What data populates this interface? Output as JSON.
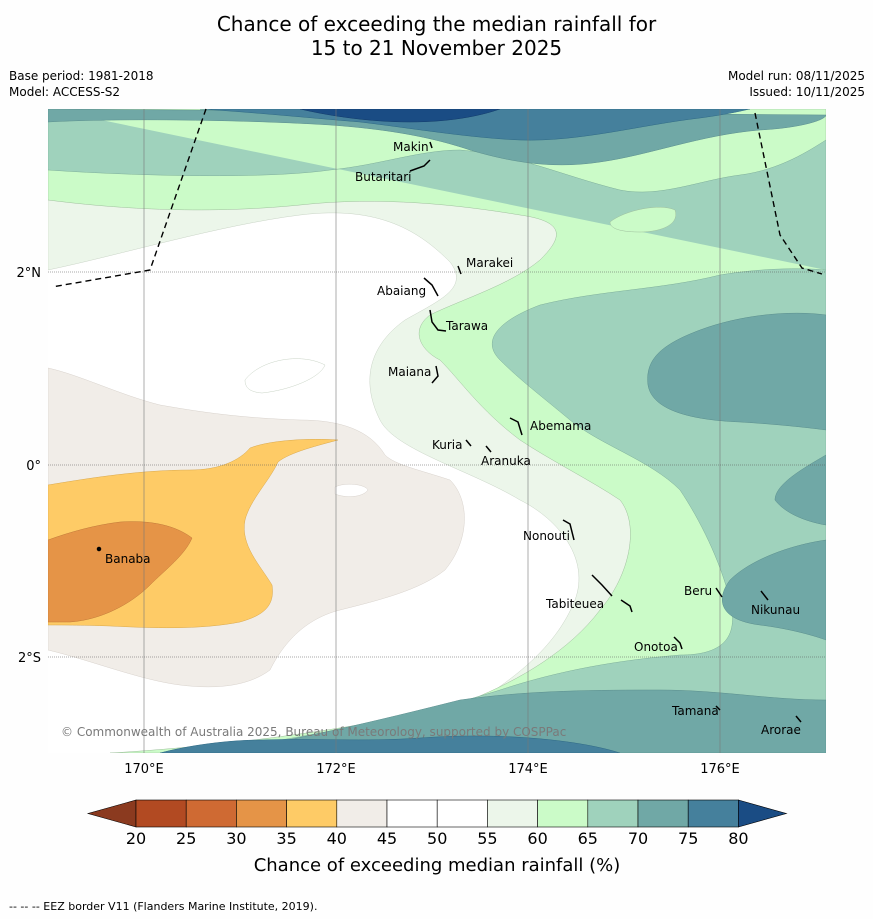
{
  "title": {
    "line1": "Chance of exceeding the median rainfall for",
    "line2": "15 to 21 November 2025"
  },
  "meta": {
    "base_period": "Base period: 1981-2018",
    "model": "Model: ACCESS-S2",
    "model_run": "Model run: 08/11/2025",
    "issued": "Issued: 10/11/2025"
  },
  "axes": {
    "lon_ticks": [
      "170°E",
      "172°E",
      "174°E",
      "176°E"
    ],
    "lat_ticks": [
      "2°N",
      "0°",
      "2°S"
    ]
  },
  "places": [
    "Makin",
    "Butaritari",
    "Marakei",
    "Abaiang",
    "Tarawa",
    "Maiana",
    "Abemama",
    "Kuria",
    "Aranuka",
    "Nonouti",
    "Banaba",
    "Beru",
    "Nikunau",
    "Tabiteuea",
    "Onotoa",
    "Tamana",
    "Arorae"
  ],
  "copyright": "© Commonwealth of Australia 2025, Bureau of Meteorology, supported by COSPPac",
  "colorbar": {
    "ticks": [
      "20",
      "25",
      "30",
      "35",
      "40",
      "45",
      "50",
      "55",
      "60",
      "65",
      "70",
      "75",
      "80"
    ],
    "label": "Chance of exceeding median rainfall (%)",
    "colors": [
      "#8b3a1f",
      "#b24a22",
      "#cf6a33",
      "#e59447",
      "#fecb66",
      "#f1ede8",
      "#ffffff",
      "#ffffff",
      "#ecf6ea",
      "#cbfbc8",
      "#9fd2bc",
      "#70a8a6",
      "#45809c",
      "#1a4c84"
    ]
  },
  "footer": "--  --  -- EEZ border V11 (Flanders Marine Institute, 2019)."
}
